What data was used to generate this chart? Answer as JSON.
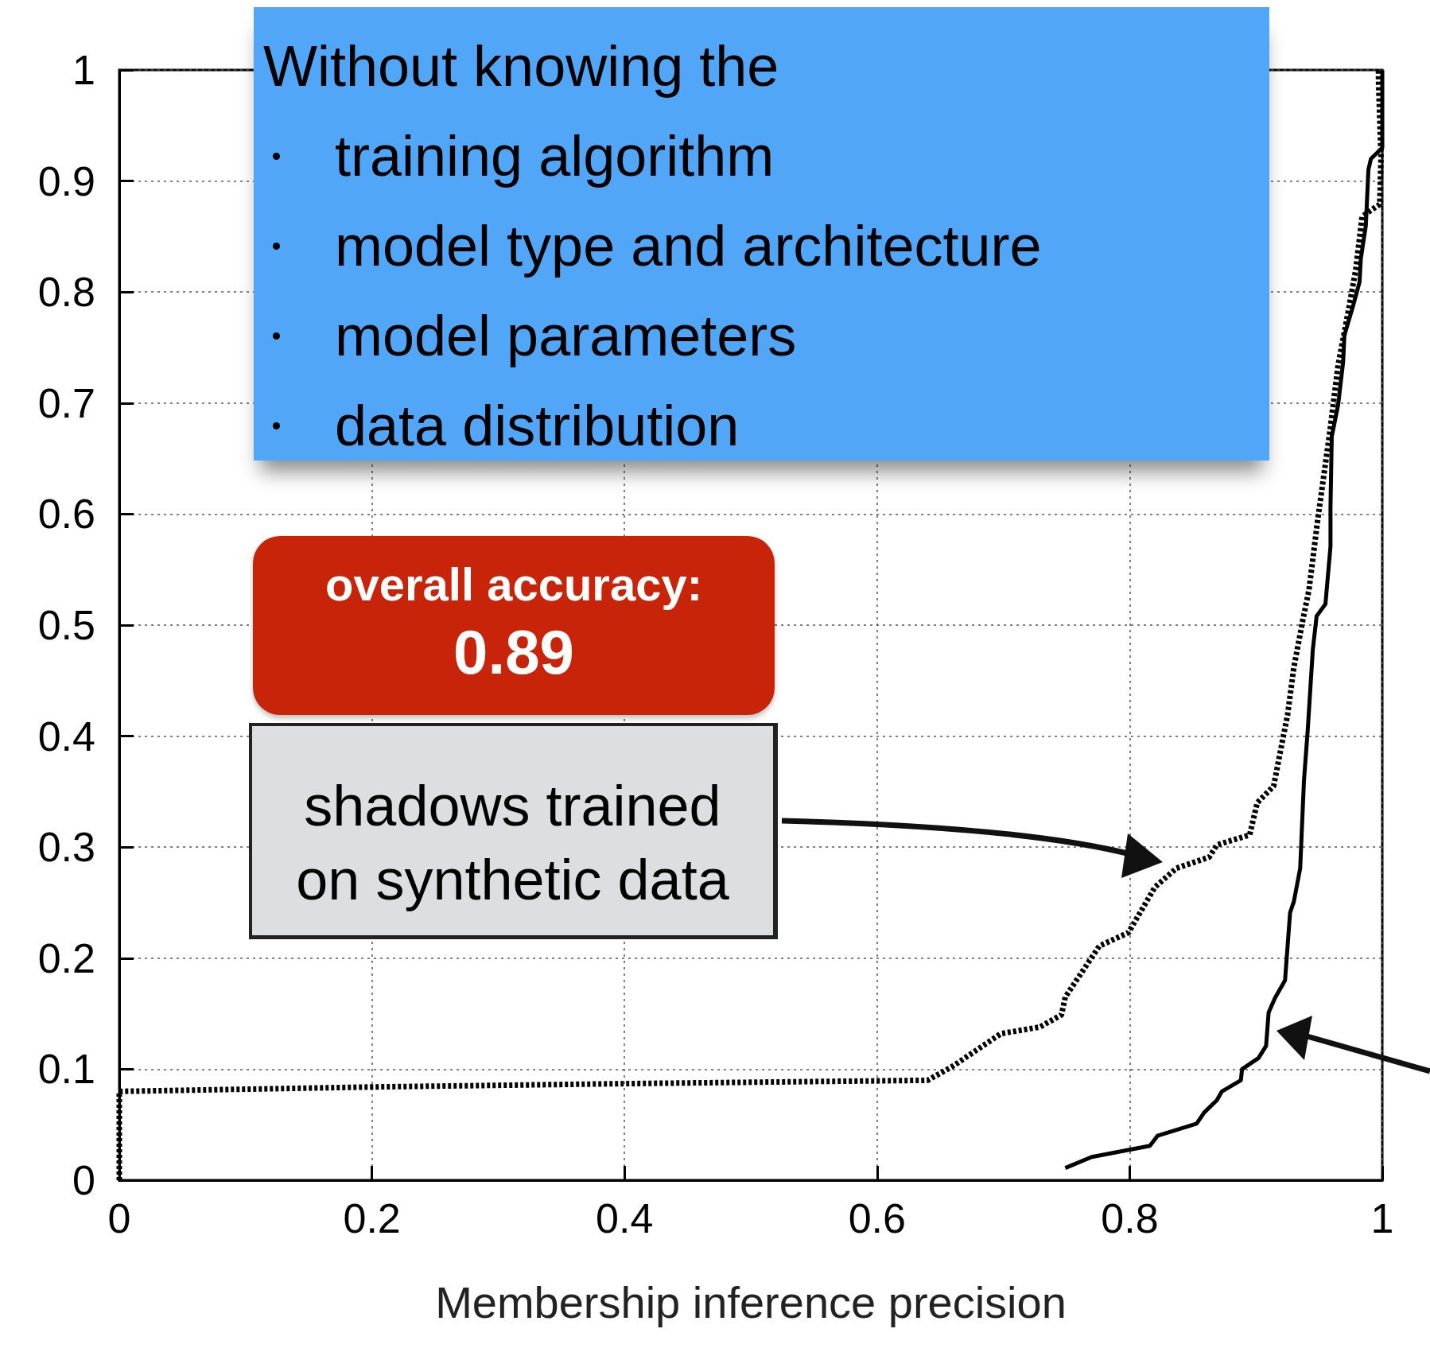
{
  "chart_data": {
    "type": "line",
    "xlabel": "Membership inference precision",
    "xlim": [
      0,
      1
    ],
    "xticks": [
      0,
      0.2,
      0.4,
      0.6,
      0.8,
      1
    ],
    "ylim": [
      0,
      1
    ],
    "yticks": [
      0,
      0.1,
      0.2,
      0.3,
      0.4,
      0.5,
      0.6,
      0.7,
      0.8,
      0.9,
      1
    ],
    "grid": true,
    "marker": "none",
    "annotations": [
      "Without knowing the",
      "training algorithm",
      "model type and architecture",
      "model parameters",
      "data distribution",
      "overall accuracy:\n0.89",
      "shadows trained on synthetic data"
    ],
    "series": [
      {
        "color": "#000000",
        "line_style": "solid",
        "x": [
          0.749,
          0.77,
          0.816,
          0.822,
          0.853,
          0.859,
          0.869,
          0.873,
          0.888,
          0.889,
          0.902,
          0.908,
          0.91,
          0.915,
          0.923,
          0.927,
          0.93,
          0.935,
          0.938,
          0.941,
          0.945,
          0.948,
          0.955,
          0.959,
          0.959,
          0.96,
          0.965,
          0.969,
          0.97,
          0.977,
          0.982,
          0.983,
          0.987,
          0.989,
          0.991,
          1.0,
          1.0
        ],
        "values": [
          0.011,
          0.021,
          0.031,
          0.04,
          0.051,
          0.061,
          0.072,
          0.08,
          0.09,
          0.1,
          0.11,
          0.121,
          0.151,
          0.164,
          0.18,
          0.241,
          0.251,
          0.281,
          0.36,
          0.406,
          0.478,
          0.508,
          0.519,
          0.571,
          0.606,
          0.67,
          0.698,
          0.737,
          0.761,
          0.788,
          0.809,
          0.83,
          0.86,
          0.91,
          0.92,
          0.93,
          1.0
        ]
      },
      {
        "color": "#000000",
        "line_style": "dotted",
        "x": [
          0,
          0,
          0.201,
          0.401,
          0.64,
          0.659,
          0.698,
          0.729,
          0.746,
          0.749,
          0.776,
          0.799,
          0.82,
          0.837,
          0.863,
          0.869,
          0.895,
          0.901,
          0.914,
          0.921,
          0.925,
          0.93,
          0.937,
          0.942,
          0.949,
          0.958,
          0.965,
          0.972,
          0.979,
          0.984,
          0.998,
          0.999,
          0.997,
          0.997
        ],
        "values": [
          0,
          0.08,
          0.084,
          0.087,
          0.09,
          0.102,
          0.132,
          0.138,
          0.149,
          0.165,
          0.211,
          0.223,
          0.264,
          0.281,
          0.291,
          0.302,
          0.311,
          0.34,
          0.355,
          0.396,
          0.419,
          0.462,
          0.504,
          0.532,
          0.596,
          0.67,
          0.734,
          0.776,
          0.82,
          0.868,
          0.879,
          0.922,
          0.991,
          1.0
        ]
      }
    ]
  }
}
